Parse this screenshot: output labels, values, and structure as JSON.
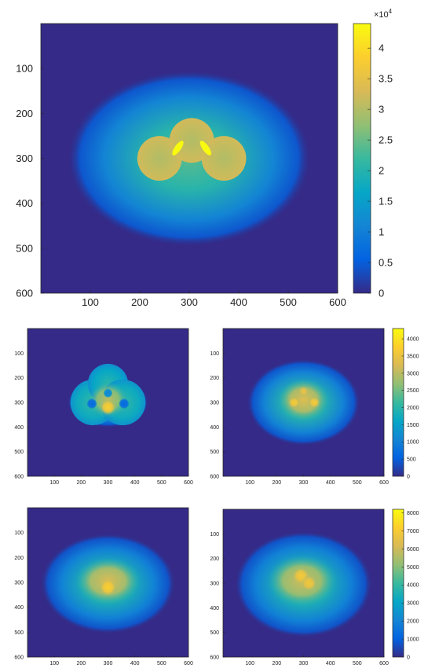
{
  "figure": {
    "colormap": "parula",
    "colormap_stops": [
      "#352a87",
      "#0363e1",
      "#1485d4",
      "#06a7c6",
      "#38b99e",
      "#92bf73",
      "#d9ba56",
      "#fcce2e",
      "#f9fb0e"
    ],
    "background_color": "#352a87"
  },
  "chart_data": [
    {
      "id": "top",
      "type": "heatmap",
      "title": "",
      "xlabel": "",
      "ylabel": "",
      "xlim": [
        0,
        600
      ],
      "ylim": [
        600,
        0
      ],
      "xticks": [
        100,
        200,
        300,
        400,
        500,
        600
      ],
      "yticks": [
        100,
        200,
        300,
        400,
        500,
        600
      ],
      "colorbar": {
        "min": 0,
        "max": 44000,
        "ticks": [
          0,
          0.5,
          1,
          1.5,
          2,
          2.5,
          3,
          3.5,
          4
        ],
        "tick_labels": [
          "0",
          "0.5",
          "1",
          "1.5",
          "2",
          "2.5",
          "3",
          "3.5",
          "4"
        ],
        "multiplier_text": "×10",
        "multiplier_exp": "4"
      },
      "features": {
        "halo": {
          "cx": 300,
          "cy": 300,
          "rx": 245,
          "ry": 195,
          "peak": 24000
        },
        "disks": [
          {
            "cx": 240,
            "cy": 300,
            "r": 45,
            "value": 32500
          },
          {
            "cx": 305,
            "cy": 260,
            "r": 45,
            "value": 32500
          },
          {
            "cx": 370,
            "cy": 300,
            "r": 45,
            "value": 32500
          }
        ],
        "bright_overlaps": 44000
      }
    },
    {
      "id": "mid-left",
      "type": "heatmap",
      "xlim": [
        0,
        600
      ],
      "ylim": [
        600,
        0
      ],
      "xticks": [
        100,
        200,
        300,
        400,
        500,
        600
      ],
      "yticks": [
        100,
        200,
        300,
        400,
        500,
        600
      ],
      "colorbar": null,
      "features": {
        "halo": {
          "cx": 300,
          "cy": 300,
          "rx": 150,
          "ry": 100,
          "peak": 2500
        },
        "disks": [
          {
            "cx": 245,
            "cy": 300,
            "r": 85,
            "value": 2000
          },
          {
            "cx": 300,
            "cy": 225,
            "r": 75,
            "value": 1900
          },
          {
            "cx": 355,
            "cy": 300,
            "r": 85,
            "value": 2000
          }
        ],
        "core": {
          "cx": 300,
          "cy": 290,
          "rx": 75,
          "ry": 75,
          "value": 3000
        },
        "hot": {
          "cx": 300,
          "cy": 320,
          "r": 28,
          "value": 3800
        },
        "holes": [
          {
            "cx": 240,
            "cy": 305,
            "r": 18,
            "value": 700
          },
          {
            "cx": 360,
            "cy": 305,
            "r": 18,
            "value": 700
          },
          {
            "cx": 300,
            "cy": 262,
            "r": 16,
            "value": 1100
          }
        ]
      }
    },
    {
      "id": "mid-right",
      "type": "heatmap",
      "xlim": [
        0,
        600
      ],
      "ylim": [
        600,
        0
      ],
      "xticks": [
        100,
        200,
        300,
        400,
        500,
        600
      ],
      "yticks": [
        100,
        200,
        300,
        400,
        500,
        600
      ],
      "colorbar": {
        "min": 0,
        "max": 4300,
        "ticks": [
          0,
          500,
          1000,
          1500,
          2000,
          2500,
          3000,
          3500,
          4000
        ],
        "tick_labels": [
          "0",
          "500",
          "1000",
          "1500",
          "2000",
          "2500",
          "3000",
          "3500",
          "4000"
        ]
      },
      "features": {
        "halo": {
          "cx": 300,
          "cy": 300,
          "rx": 210,
          "ry": 175,
          "peak": 2300
        },
        "core": {
          "cx": 300,
          "cy": 290,
          "rx": 95,
          "ry": 85,
          "value": 3300
        },
        "hot": [
          {
            "cx": 265,
            "cy": 300,
            "r": 20,
            "value": 3700
          },
          {
            "cx": 340,
            "cy": 300,
            "r": 20,
            "value": 3700
          },
          {
            "cx": 300,
            "cy": 255,
            "r": 18,
            "value": 3500
          }
        ]
      }
    },
    {
      "id": "bottom-left",
      "type": "heatmap",
      "xlim": [
        0,
        600
      ],
      "ylim": [
        600,
        0
      ],
      "xticks": [
        100,
        200,
        300,
        400,
        500,
        600
      ],
      "yticks": [
        100,
        200,
        300,
        400,
        500,
        600
      ],
      "colorbar": null,
      "features": {
        "halo": {
          "cx": 300,
          "cy": 305,
          "rx": 250,
          "ry": 200,
          "peak": 4200
        },
        "core": {
          "cx": 300,
          "cy": 295,
          "rx": 120,
          "ry": 95,
          "value": 6200
        },
        "hot": [
          {
            "cx": 300,
            "cy": 320,
            "r": 30,
            "value": 7200
          }
        ]
      }
    },
    {
      "id": "bottom-right",
      "type": "heatmap",
      "xlim": [
        0,
        600
      ],
      "ylim": [
        600,
        0
      ],
      "xticks": [
        100,
        200,
        300,
        400,
        500,
        600
      ],
      "yticks": [
        100,
        200,
        300,
        400,
        500,
        600
      ],
      "colorbar": {
        "min": 0,
        "max": 8200,
        "ticks": [
          0,
          1000,
          2000,
          3000,
          4000,
          5000,
          6000,
          7000,
          8000
        ],
        "tick_labels": [
          "0",
          "1000",
          "2000",
          "3000",
          "4000",
          "5000",
          "6000",
          "7000",
          "8000"
        ]
      },
      "features": {
        "halo": {
          "cx": 300,
          "cy": 305,
          "rx": 255,
          "ry": 215,
          "peak": 4200
        },
        "core": {
          "cx": 295,
          "cy": 290,
          "rx": 130,
          "ry": 105,
          "value": 6000
        },
        "hot": [
          {
            "cx": 290,
            "cy": 270,
            "r": 30,
            "value": 7000
          },
          {
            "cx": 320,
            "cy": 300,
            "r": 28,
            "value": 6900
          }
        ]
      }
    }
  ]
}
